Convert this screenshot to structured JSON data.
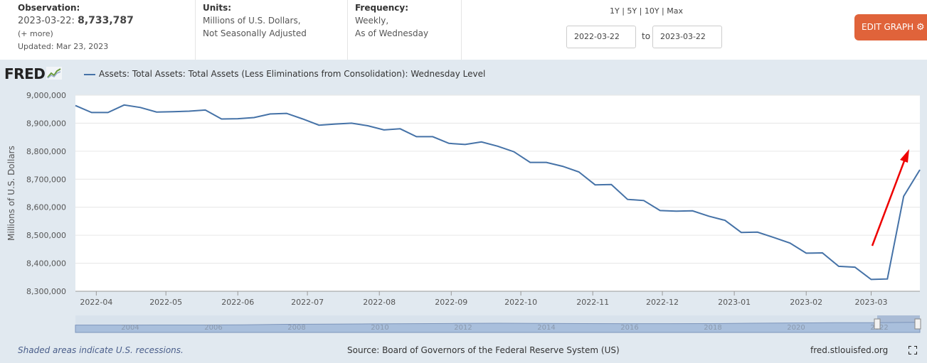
{
  "observation": {
    "label": "Observation:",
    "date": "2023-03-22:",
    "value": "8,733,787",
    "more": "(+ more)",
    "updated": "Updated: Mar 23, 2023"
  },
  "units": {
    "label": "Units:",
    "line1": "Millions of U.S. Dollars,",
    "line2": "Not Seasonally Adjusted"
  },
  "frequency": {
    "label": "Frequency:",
    "line1": "Weekly,",
    "line2": "As of Wednesday"
  },
  "ranges": "1Y | 5Y | 10Y | Max",
  "date_from": "2022-03-22",
  "to_label": "to",
  "date_to": "2023-03-22",
  "edit_button": "EDIT GRAPH",
  "logo": "FRED",
  "legend": "Assets: Total Assets: Total Assets (Less Eliminations from Consolidation): Wednesday Level",
  "footer": {
    "recessions": "Shaded areas indicate U.S. recessions.",
    "source": "Source: Board of Governors of the Federal Reserve System (US)",
    "site": "fred.stlouisfed.org"
  },
  "colors": {
    "line": "#4572a7",
    "arrow": "#ee0000",
    "accent": "#e0633a",
    "navigator_fill": "#a9bfdc"
  },
  "chart_data": {
    "type": "line",
    "title": "Assets: Total Assets: Total Assets (Less Eliminations from Consolidation): Wednesday Level",
    "ylabel": "Millions of U.S. Dollars",
    "xlabel": "",
    "ylim": [
      8300000,
      9000000
    ],
    "yticks": [
      9000000,
      8900000,
      8800000,
      8700000,
      8600000,
      8500000,
      8400000,
      8300000
    ],
    "ytick_labels": [
      "9,000,000",
      "8,900,000",
      "8,800,000",
      "8,700,000",
      "8,600,000",
      "8,500,000",
      "8,400,000",
      "8,300,000"
    ],
    "x_months": [
      "2022-04",
      "2022-05",
      "2022-06",
      "2022-07",
      "2022-08",
      "2022-09",
      "2022-10",
      "2022-11",
      "2022-12",
      "2023-01",
      "2023-02",
      "2023-03"
    ],
    "x": [
      "2022-03-23",
      "2022-03-30",
      "2022-04-06",
      "2022-04-13",
      "2022-04-20",
      "2022-04-27",
      "2022-05-04",
      "2022-05-11",
      "2022-05-18",
      "2022-05-25",
      "2022-06-01",
      "2022-06-08",
      "2022-06-15",
      "2022-06-22",
      "2022-06-29",
      "2022-07-06",
      "2022-07-13",
      "2022-07-20",
      "2022-07-27",
      "2022-08-03",
      "2022-08-10",
      "2022-08-17",
      "2022-08-24",
      "2022-08-31",
      "2022-09-07",
      "2022-09-14",
      "2022-09-21",
      "2022-09-28",
      "2022-10-05",
      "2022-10-12",
      "2022-10-19",
      "2022-10-26",
      "2022-11-02",
      "2022-11-09",
      "2022-11-16",
      "2022-11-23",
      "2022-11-30",
      "2022-12-07",
      "2022-12-14",
      "2022-12-21",
      "2022-12-28",
      "2023-01-04",
      "2023-01-11",
      "2023-01-18",
      "2023-01-25",
      "2023-02-01",
      "2023-02-08",
      "2023-02-15",
      "2023-02-22",
      "2023-03-01",
      "2023-03-08",
      "2023-03-15",
      "2023-03-22"
    ],
    "series": [
      {
        "name": "Assets: Total Assets: Total Assets (Less Eliminations from Consolidation): Wednesday Level",
        "values": [
          8963000,
          8938000,
          8938000,
          8965000,
          8956000,
          8940000,
          8941000,
          8943000,
          8947000,
          8915000,
          8916000,
          8920000,
          8933000,
          8935000,
          8915000,
          8893000,
          8897000,
          8900000,
          8891000,
          8876000,
          8880000,
          8852000,
          8852000,
          8828000,
          8824000,
          8833000,
          8818000,
          8798000,
          8760000,
          8760000,
          8746000,
          8726000,
          8680000,
          8681000,
          8628000,
          8624000,
          8588000,
          8586000,
          8587000,
          8568000,
          8553000,
          8510000,
          8511000,
          8492000,
          8472000,
          8436000,
          8437000,
          8389000,
          8386000,
          8342000,
          8344000,
          8639000,
          8733787
        ]
      }
    ],
    "annotation": "red arrow pointing up at the final jump",
    "navigator_years": [
      "2004",
      "2006",
      "2008",
      "2010",
      "2012",
      "2014",
      "2016",
      "2018",
      "2020",
      "2022"
    ],
    "navigator_values": [
      0.72,
      0.72,
      0.73,
      0.73,
      0.75,
      0.8,
      0.82,
      0.84,
      0.86,
      0.88,
      0.9,
      0.89,
      0.87,
      0.86,
      0.86,
      0.87,
      0.9,
      0.93,
      0.95,
      0.96,
      1.0
    ]
  }
}
